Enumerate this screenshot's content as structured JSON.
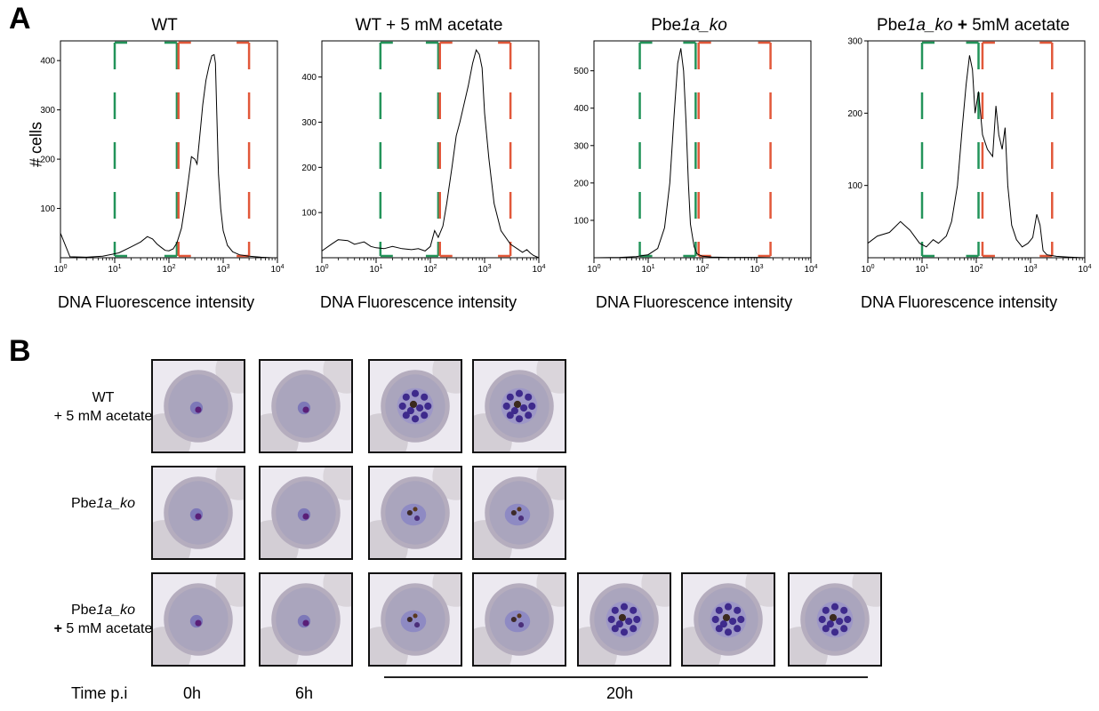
{
  "panel_a": {
    "letter": "A",
    "ylabel": "# cells",
    "xlabel": "DNA Fluorescence intensity",
    "gate_colors": {
      "green": "#23945a",
      "orange": "#e2583a"
    }
  },
  "chart_data": [
    {
      "type": "histogram",
      "title": "WT",
      "xlabel": "DNA Fluorescence intensity",
      "ylabel": "# cells",
      "x_scale": "log",
      "xlim": [
        1,
        10000
      ],
      "ylim": [
        0,
        440
      ],
      "x_ticks": [
        "10^0",
        "10^1",
        "10^2",
        "10^3",
        "10^4"
      ],
      "y_ticks": [
        100,
        200,
        300,
        400
      ],
      "gates": {
        "green": [
          10,
          140
        ],
        "orange": [
          150,
          3000
        ]
      },
      "x": [
        1,
        1.5,
        3,
        6,
        12,
        20,
        30,
        40,
        50,
        60,
        70,
        85,
        100,
        120,
        140,
        170,
        200,
        230,
        260,
        300,
        330,
        380,
        420,
        480,
        550,
        620,
        680,
        720,
        760,
        820,
        900,
        1000,
        1200,
        1500,
        2000,
        3000,
        5000,
        8000,
        10000
      ],
      "y": [
        50,
        2,
        1,
        3,
        10,
        22,
        32,
        43,
        38,
        28,
        22,
        15,
        14,
        18,
        30,
        60,
        110,
        160,
        205,
        200,
        190,
        260,
        310,
        360,
        390,
        410,
        412,
        395,
        300,
        170,
        100,
        55,
        25,
        12,
        6,
        3,
        1,
        0,
        0
      ]
    },
    {
      "type": "histogram",
      "title": "WT + 5 mM acetate",
      "xlabel": "DNA Fluorescence intensity",
      "ylabel": "",
      "x_scale": "log",
      "xlim": [
        1,
        10000
      ],
      "ylim": [
        0,
        480
      ],
      "x_ticks": [
        "10^0",
        "10^1",
        "10^2",
        "10^3",
        "10^4"
      ],
      "y_ticks": [
        100,
        200,
        300,
        400
      ],
      "gates": {
        "green": [
          12,
          140
        ],
        "orange": [
          150,
          3000
        ]
      },
      "x": [
        1,
        1.5,
        2,
        3,
        4,
        6,
        8,
        10,
        14,
        20,
        30,
        45,
        60,
        80,
        100,
        120,
        140,
        170,
        200,
        250,
        300,
        350,
        400,
        500,
        600,
        700,
        800,
        900,
        1000,
        1200,
        1500,
        2000,
        3000,
        4000,
        5000,
        6000,
        7000,
        8000,
        10000
      ],
      "y": [
        15,
        30,
        40,
        38,
        30,
        35,
        25,
        22,
        20,
        25,
        20,
        18,
        20,
        15,
        25,
        60,
        45,
        70,
        120,
        200,
        270,
        300,
        330,
        380,
        430,
        460,
        450,
        420,
        320,
        220,
        120,
        60,
        30,
        20,
        12,
        18,
        10,
        5,
        0
      ]
    },
    {
      "type": "histogram",
      "title": "Pbe1a_ko",
      "xlabel": "DNA Fluorescence intensity",
      "ylabel": "",
      "x_scale": "log",
      "xlim": [
        1,
        10000
      ],
      "ylim": [
        0,
        580
      ],
      "x_ticks": [
        "10^0",
        "10^1",
        "10^2",
        "10^3",
        "10^4"
      ],
      "y_ticks": [
        100,
        200,
        300,
        400,
        500
      ],
      "gates": {
        "green": [
          7,
          75
        ],
        "orange": [
          85,
          1800
        ]
      },
      "x": [
        1,
        3,
        6,
        10,
        15,
        20,
        25,
        30,
        35,
        40,
        45,
        50,
        55,
        60,
        70,
        80,
        100,
        150,
        300,
        1000,
        2000,
        10000
      ],
      "y": [
        0,
        1,
        3,
        8,
        25,
        80,
        200,
        380,
        520,
        560,
        500,
        360,
        200,
        90,
        30,
        10,
        4,
        2,
        1,
        1,
        0,
        0
      ]
    },
    {
      "type": "histogram",
      "title": "Pbe1a_ko + 5mM acetate",
      "xlabel": "DNA Fluorescence intensity",
      "ylabel": "",
      "x_scale": "log",
      "xlim": [
        1,
        10000
      ],
      "ylim": [
        0,
        300
      ],
      "x_ticks": [
        "10^0",
        "10^1",
        "10^2",
        "10^3",
        "10^4"
      ],
      "y_ticks": [
        100,
        200,
        300
      ],
      "gates": {
        "green": [
          10,
          110
        ],
        "orange": [
          130,
          2500
        ]
      },
      "x": [
        1,
        1.5,
        2.5,
        4,
        6,
        9,
        12,
        16,
        20,
        28,
        35,
        45,
        55,
        65,
        75,
        85,
        95,
        110,
        130,
        160,
        200,
        230,
        260,
        300,
        340,
        380,
        450,
        550,
        700,
        900,
        1100,
        1300,
        1500,
        1700,
        2000,
        3000,
        5000,
        10000
      ],
      "y": [
        20,
        30,
        35,
        50,
        38,
        20,
        15,
        25,
        20,
        30,
        50,
        100,
        180,
        240,
        280,
        260,
        200,
        230,
        170,
        150,
        140,
        210,
        170,
        150,
        180,
        100,
        45,
        25,
        15,
        20,
        28,
        60,
        45,
        10,
        4,
        2,
        1,
        0
      ]
    }
  ],
  "panel_b": {
    "letter": "B",
    "rows": [
      {
        "label_line1": "WT",
        "label_line2": "+ 5 mM acetate"
      },
      {
        "label_line1": "Pbe1a_ko",
        "label_line2": ""
      },
      {
        "label_line1": "Pbe1a_ko",
        "label_line2": "+ 5 mM acetate"
      }
    ],
    "time_label": "Time p.i",
    "times": [
      "0h",
      "6h",
      "20h"
    ]
  }
}
